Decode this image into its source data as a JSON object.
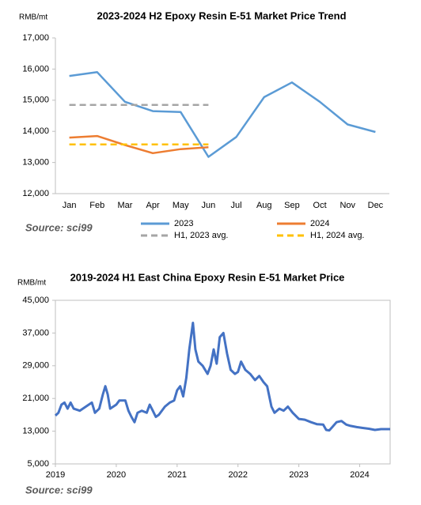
{
  "chart_data": [
    {
      "type": "line",
      "title": "2023-2024 H2 Epoxy Resin E-51 Market Price Trend",
      "y_label": "RMB/mt",
      "source": "Source: sci99",
      "categories": [
        "Jan",
        "Feb",
        "Mar",
        "Apr",
        "May",
        "Jun",
        "Jul",
        "Aug",
        "Sep",
        "Oct",
        "Nov",
        "Dec"
      ],
      "series": [
        {
          "name": "2023",
          "color": "#5b9bd5",
          "values": [
            15780,
            15900,
            14950,
            14650,
            14620,
            13180,
            13820,
            15100,
            15570,
            14950,
            14220,
            13980
          ]
        },
        {
          "name": "2024",
          "color": "#ed7d31",
          "values": [
            13800,
            13850,
            13560,
            13300,
            13430,
            13490,
            null,
            null,
            null,
            null,
            null,
            null
          ]
        },
        {
          "name": "H1, 2023 avg.",
          "color": "#a5a5a5",
          "dashed": true,
          "values": [
            14850,
            14850,
            14850,
            14850,
            14850,
            14850,
            null,
            null,
            null,
            null,
            null,
            null
          ]
        },
        {
          "name": "H1, 2024 avg.",
          "color": "#ffc000",
          "dashed": true,
          "values": [
            13580,
            13580,
            13580,
            13580,
            13580,
            13580,
            null,
            null,
            null,
            null,
            null,
            null
          ]
        }
      ],
      "ylim": [
        12000,
        17000
      ],
      "yticks": [
        {
          "value": 12000,
          "label": "12,000"
        },
        {
          "value": 13000,
          "label": "13,000"
        },
        {
          "value": 14000,
          "label": "14,000"
        },
        {
          "value": 15000,
          "label": "15,000"
        },
        {
          "value": 16000,
          "label": "16,000"
        },
        {
          "value": 17000,
          "label": "17,000"
        }
      ],
      "grid": false
    },
    {
      "type": "line",
      "title": "2019-2024 H1 East China Epoxy Resin E-51 Market Price",
      "y_label": "RMB/mt",
      "source": "Source: sci99",
      "x": [
        2019.0,
        2019.05,
        2019.1,
        2019.15,
        2019.2,
        2019.25,
        2019.3,
        2019.4,
        2019.5,
        2019.6,
        2019.65,
        2019.72,
        2019.78,
        2019.82,
        2019.86,
        2019.9,
        2020.0,
        2020.05,
        2020.15,
        2020.2,
        2020.25,
        2020.3,
        2020.35,
        2020.42,
        2020.5,
        2020.55,
        2020.6,
        2020.65,
        2020.7,
        2020.8,
        2020.88,
        2020.95,
        2021.0,
        2021.05,
        2021.1,
        2021.15,
        2021.2,
        2021.26,
        2021.3,
        2021.35,
        2021.42,
        2021.5,
        2021.55,
        2021.6,
        2021.65,
        2021.7,
        2021.76,
        2021.82,
        2021.88,
        2021.95,
        2022.0,
        2022.05,
        2022.12,
        2022.2,
        2022.28,
        2022.35,
        2022.42,
        2022.48,
        2022.55,
        2022.6,
        2022.68,
        2022.75,
        2022.82,
        2022.9,
        2023.0,
        2023.1,
        2023.2,
        2023.3,
        2023.4,
        2023.45,
        2023.5,
        2023.55,
        2023.62,
        2023.7,
        2023.78,
        2023.85,
        2023.95,
        2024.05,
        2024.15,
        2024.25,
        2024.35,
        2024.5
      ],
      "series": [
        {
          "name": null,
          "color": "#4472c4",
          "values": [
            16800,
            17500,
            19500,
            20000,
            18500,
            20000,
            18500,
            18000,
            19000,
            20000,
            17500,
            18500,
            22000,
            24000,
            22000,
            18500,
            19500,
            20500,
            20500,
            18000,
            16500,
            15200,
            17500,
            18000,
            17500,
            19500,
            18000,
            16500,
            17000,
            19000,
            20000,
            20500,
            23000,
            24000,
            21500,
            26000,
            33000,
            39500,
            33000,
            30000,
            29000,
            27000,
            29000,
            33000,
            29500,
            36000,
            37000,
            32000,
            28000,
            27000,
            27500,
            30000,
            28000,
            27000,
            25500,
            26500,
            25000,
            24000,
            19000,
            17500,
            18500,
            18000,
            19000,
            17500,
            16000,
            15800,
            15200,
            14700,
            14600,
            13300,
            13200,
            14000,
            15200,
            15500,
            14600,
            14300,
            14000,
            13800,
            13600,
            13300,
            13500,
            13500
          ]
        }
      ],
      "xlim": [
        2019,
        2024.5
      ],
      "xticks": [
        2019,
        2020,
        2021,
        2022,
        2023,
        2024
      ],
      "ylim": [
        5000,
        45000
      ],
      "yticks": [
        {
          "value": 5000,
          "label": "5,000"
        },
        {
          "value": 13000,
          "label": "13,000"
        },
        {
          "value": 21000,
          "label": "21,000"
        },
        {
          "value": 29000,
          "label": "29,000"
        },
        {
          "value": 37000,
          "label": "37,000"
        },
        {
          "value": 45000,
          "label": "45,000"
        }
      ],
      "grid": false
    }
  ]
}
